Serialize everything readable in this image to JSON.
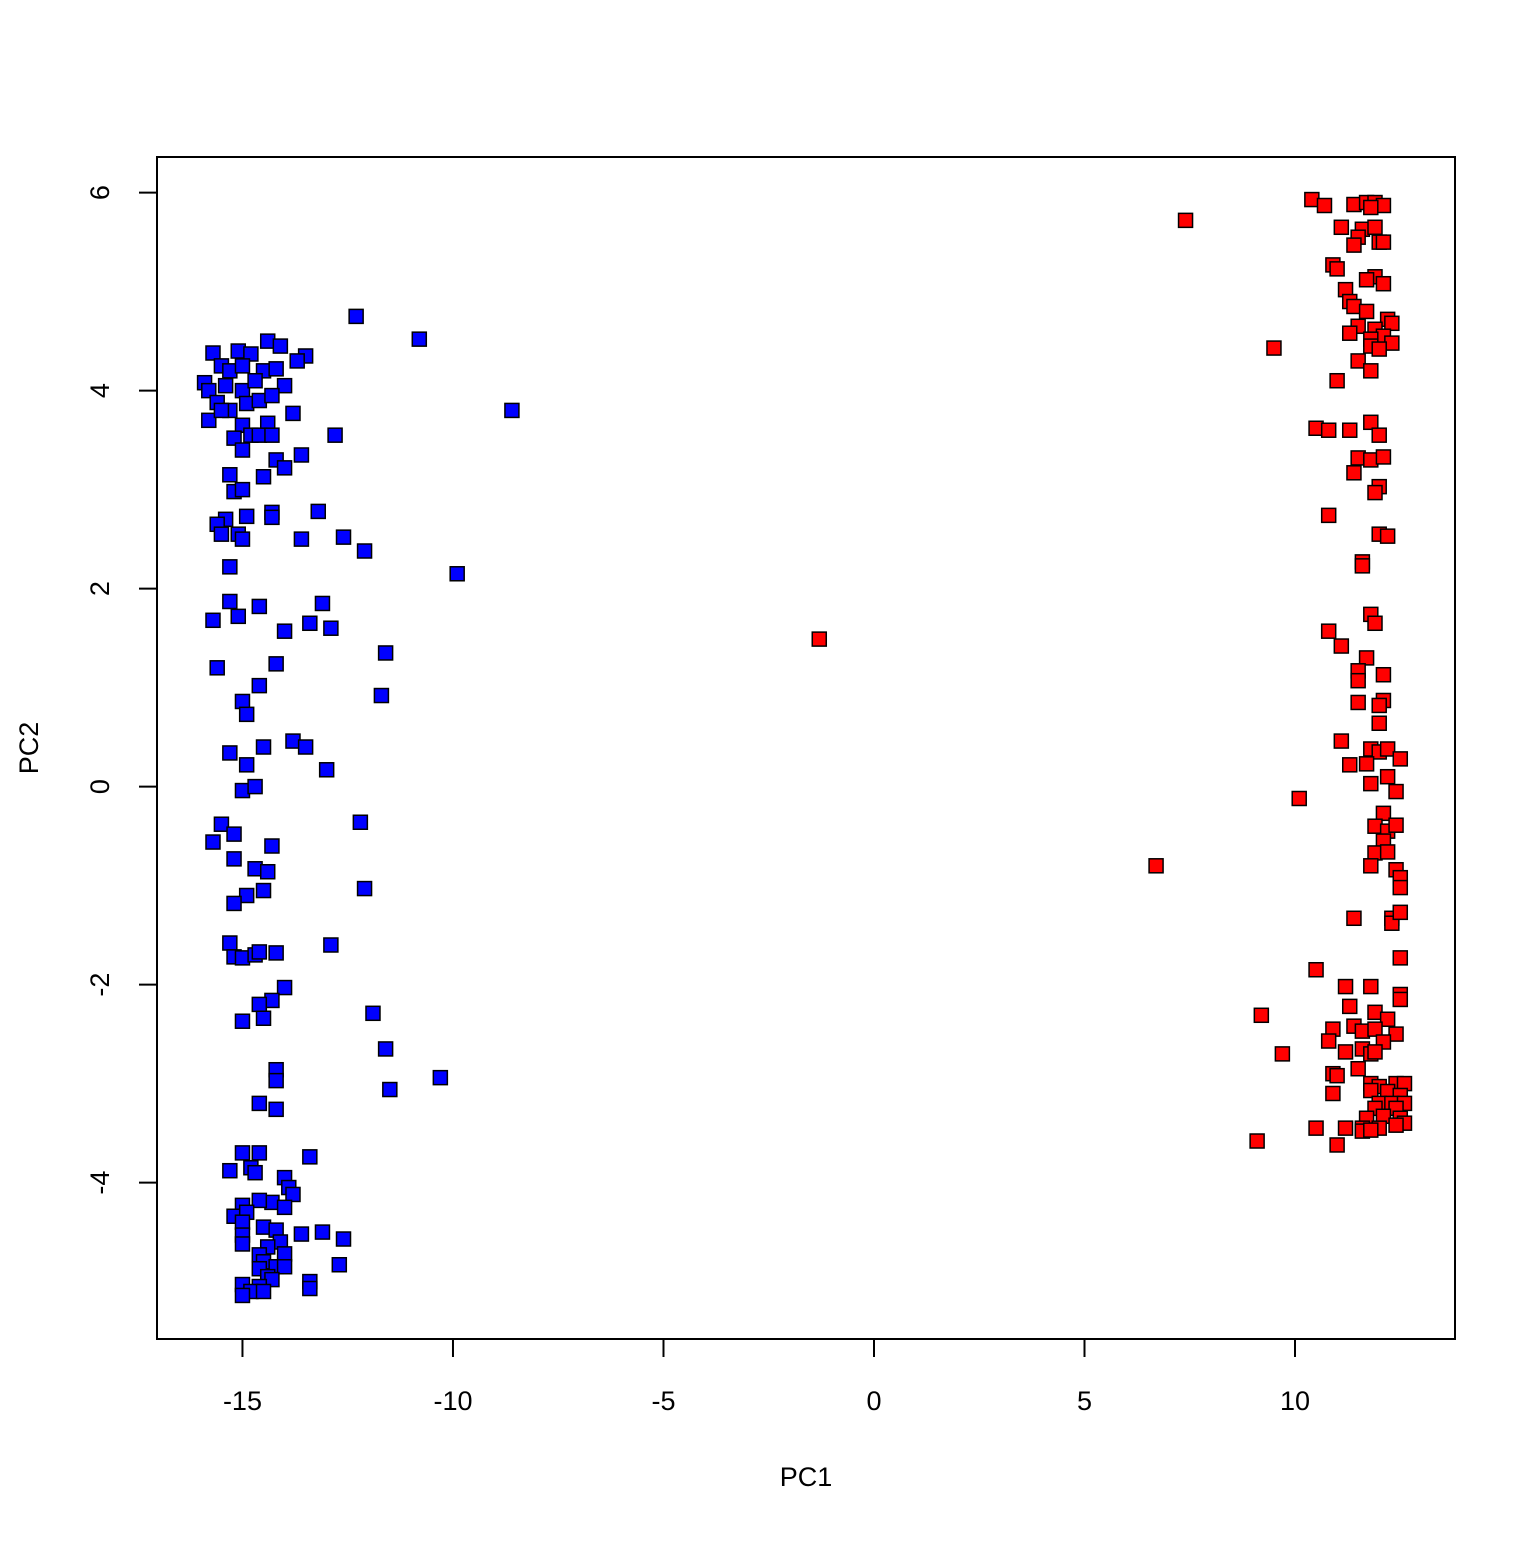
{
  "chart_data": {
    "type": "scatter",
    "x_label": "PC1",
    "y_label": "PC2",
    "xlim": [
      -17.03,
      13.8
    ],
    "ylim": [
      -5.58,
      6.36
    ],
    "xticks": [
      -15,
      -10,
      -5,
      0,
      5,
      10
    ],
    "yticks": [
      -4,
      -2,
      0,
      2,
      4,
      6
    ],
    "grid": false,
    "series": [
      {
        "color": "#0000ff",
        "x": [
          -12.3,
          -10.8,
          -8.6,
          -9.9,
          -14.4,
          -14.1,
          -13.5,
          -13.7,
          -15.7,
          -15.1,
          -14.8,
          -15.5,
          -15.3,
          -15.0,
          -14.5,
          -14.2,
          -15.9,
          -15.8,
          -15.4,
          -15.0,
          -14.7,
          -14.0,
          -15.6,
          -15.3,
          -14.9,
          -14.6,
          -14.3,
          -15.8,
          -15.5,
          -15.0,
          -14.4,
          -13.8,
          -14.8,
          -15.2,
          -14.6,
          -14.3,
          -12.8,
          -15.0,
          -13.6,
          -14.2,
          -14.0,
          -15.3,
          -14.5,
          -15.2,
          -15.0,
          -15.4,
          -15.6,
          -14.9,
          -14.3,
          -14.3,
          -13.2,
          -15.5,
          -15.1,
          -15.0,
          -13.6,
          -12.6,
          -12.1,
          -15.3,
          -15.3,
          -14.6,
          -13.1,
          -15.1,
          -15.7,
          -13.4,
          -12.9,
          -14.0,
          -11.6,
          -15.6,
          -14.2,
          -14.6,
          -11.7,
          -15.0,
          -14.9,
          -13.8,
          -13.5,
          -14.5,
          -15.3,
          -14.9,
          -13.0,
          -15.0,
          -14.7,
          -12.2,
          -15.5,
          -15.2,
          -15.7,
          -14.3,
          -15.2,
          -14.7,
          -14.4,
          -12.1,
          -14.5,
          -14.9,
          -15.2,
          -12.9,
          -15.3,
          -15.2,
          -15.0,
          -14.7,
          -14.6,
          -14.2,
          -14.0,
          -14.3,
          -14.6,
          -11.9,
          -15.0,
          -14.5,
          -11.6,
          -14.2,
          -14.2,
          -10.3,
          -11.5,
          -14.6,
          -14.2,
          -15.0,
          -14.6,
          -13.4,
          -14.8,
          -15.3,
          -14.0,
          -14.7,
          -13.9,
          -13.8,
          -14.3,
          -14.6,
          -15.0,
          -14.0,
          -15.2,
          -14.9,
          -15.0,
          -14.5,
          -14.2,
          -13.1,
          -13.6,
          -12.6,
          -15.0,
          -14.1,
          -15.0,
          -14.4,
          -14.6,
          -14.0,
          -14.5,
          -14.2,
          -14.6,
          -14.0,
          -12.7,
          -14.4,
          -14.3,
          -13.4,
          -15.0,
          -14.6,
          -13.4,
          -14.8,
          -14.5,
          -15.0
        ],
        "values": [
          4.75,
          4.52,
          3.8,
          2.15,
          4.5,
          4.45,
          4.35,
          4.3,
          4.38,
          4.4,
          4.37,
          4.25,
          4.2,
          4.25,
          4.2,
          4.22,
          4.08,
          4.0,
          4.05,
          4.0,
          4.1,
          4.05,
          3.88,
          3.8,
          3.87,
          3.9,
          3.95,
          3.7,
          3.8,
          3.65,
          3.67,
          3.77,
          3.55,
          3.52,
          3.55,
          3.55,
          3.55,
          3.4,
          3.35,
          3.3,
          3.22,
          3.15,
          3.13,
          2.98,
          3.0,
          2.7,
          2.65,
          2.73,
          2.77,
          2.72,
          2.78,
          2.55,
          2.55,
          2.5,
          2.5,
          2.52,
          2.38,
          2.22,
          1.87,
          1.82,
          1.85,
          1.72,
          1.68,
          1.65,
          1.6,
          1.57,
          1.35,
          1.2,
          1.24,
          1.02,
          0.92,
          0.86,
          0.73,
          0.46,
          0.4,
          0.4,
          0.34,
          0.22,
          0.17,
          -0.04,
          0.0,
          -0.36,
          -0.38,
          -0.48,
          -0.56,
          -0.6,
          -0.73,
          -0.83,
          -0.86,
          -1.03,
          -1.05,
          -1.1,
          -1.18,
          -1.6,
          -1.58,
          -1.72,
          -1.73,
          -1.7,
          -1.67,
          -1.68,
          -2.03,
          -2.16,
          -2.2,
          -2.29,
          -2.37,
          -2.34,
          -2.65,
          -2.86,
          -2.97,
          -2.94,
          -3.06,
          -3.2,
          -3.26,
          -3.7,
          -3.7,
          -3.74,
          -3.85,
          -3.88,
          -3.95,
          -3.9,
          -4.05,
          -4.12,
          -4.2,
          -4.18,
          -4.23,
          -4.25,
          -4.34,
          -4.3,
          -4.4,
          -4.45,
          -4.48,
          -4.5,
          -4.52,
          -4.57,
          -4.53,
          -4.6,
          -4.62,
          -4.65,
          -4.73,
          -4.72,
          -4.8,
          -4.85,
          -4.87,
          -4.85,
          -4.83,
          -4.95,
          -4.98,
          -5.0,
          -5.03,
          -5.05,
          -5.07,
          -5.1,
          -5.1,
          -5.14
        ]
      },
      {
        "color": "#ff0000",
        "x": [
          7.4,
          10.4,
          10.7,
          11.4,
          11.7,
          11.9,
          12.1,
          11.8,
          11.1,
          11.6,
          11.9,
          11.5,
          12.0,
          12.1,
          11.4,
          10.9,
          11.0,
          11.9,
          11.7,
          12.1,
          11.2,
          11.3,
          11.4,
          11.7,
          12.2,
          12.3,
          11.5,
          11.9,
          11.3,
          12.1,
          11.8,
          12.3,
          9.5,
          11.8,
          12.0,
          11.5,
          11.8,
          11.0,
          11.8,
          10.5,
          10.8,
          11.3,
          12.0,
          11.5,
          11.8,
          12.1,
          11.4,
          12.0,
          11.9,
          10.8,
          12.0,
          12.2,
          11.6,
          11.6,
          11.8,
          11.9,
          10.8,
          11.1,
          11.7,
          12.1,
          11.5,
          11.5,
          12.1,
          11.5,
          12.0,
          12.0,
          11.1,
          11.8,
          12.0,
          12.2,
          12.5,
          11.3,
          11.7,
          12.2,
          11.8,
          12.4,
          10.1,
          12.1,
          11.9,
          12.2,
          12.4,
          12.1,
          11.9,
          12.2,
          11.8,
          6.7,
          12.4,
          12.5,
          12.5,
          11.4,
          12.3,
          12.3,
          12.5,
          12.5,
          10.5,
          11.2,
          11.8,
          12.5,
          12.5,
          11.3,
          11.9,
          9.2,
          12.2,
          11.4,
          10.9,
          11.6,
          11.9,
          12.4,
          10.8,
          12.1,
          11.6,
          11.8,
          11.9,
          9.7,
          11.2,
          11.5,
          10.9,
          11.0,
          11.8,
          12.0,
          12.4,
          12.6,
          12.2,
          11.8,
          10.9,
          12.5,
          12.0,
          12.3,
          12.6,
          11.9,
          12.4,
          12.1,
          11.7,
          12.5,
          12.6,
          12.4,
          11.6,
          12.0,
          10.5,
          11.2,
          11.6,
          11.8,
          9.1,
          11.0,
          -1.3
        ],
        "values": [
          5.72,
          5.93,
          5.87,
          5.88,
          5.9,
          5.9,
          5.87,
          5.85,
          5.65,
          5.63,
          5.65,
          5.55,
          5.5,
          5.5,
          5.47,
          5.27,
          5.23,
          5.15,
          5.12,
          5.08,
          5.02,
          4.9,
          4.85,
          4.8,
          4.72,
          4.68,
          4.65,
          4.62,
          4.58,
          4.55,
          4.52,
          4.48,
          4.43,
          4.45,
          4.42,
          4.3,
          4.2,
          4.1,
          3.68,
          3.62,
          3.6,
          3.6,
          3.55,
          3.32,
          3.3,
          3.33,
          3.17,
          3.03,
          2.97,
          2.74,
          2.55,
          2.53,
          2.27,
          2.23,
          1.74,
          1.65,
          1.57,
          1.42,
          1.3,
          1.13,
          1.17,
          1.07,
          0.87,
          0.85,
          0.82,
          0.64,
          0.46,
          0.38,
          0.35,
          0.38,
          0.28,
          0.22,
          0.23,
          0.1,
          0.03,
          -0.05,
          -0.12,
          -0.27,
          -0.4,
          -0.45,
          -0.39,
          -0.55,
          -0.67,
          -0.66,
          -0.8,
          -0.8,
          -0.84,
          -0.92,
          -1.02,
          -1.33,
          -1.33,
          -1.38,
          -1.27,
          -1.73,
          -1.85,
          -2.02,
          -2.02,
          -2.1,
          -2.15,
          -2.22,
          -2.28,
          -2.31,
          -2.35,
          -2.42,
          -2.45,
          -2.47,
          -2.45,
          -2.5,
          -2.57,
          -2.58,
          -2.65,
          -2.7,
          -2.68,
          -2.7,
          -2.68,
          -2.85,
          -2.9,
          -2.92,
          -3.0,
          -3.03,
          -3.0,
          -3.0,
          -3.08,
          -3.07,
          -3.1,
          -3.12,
          -3.2,
          -3.2,
          -3.2,
          -3.25,
          -3.25,
          -3.33,
          -3.35,
          -3.35,
          -3.4,
          -3.42,
          -3.45,
          -3.45,
          -3.45,
          -3.45,
          -3.48,
          -3.47,
          -3.58,
          -3.62,
          1.49
        ]
      }
    ]
  }
}
